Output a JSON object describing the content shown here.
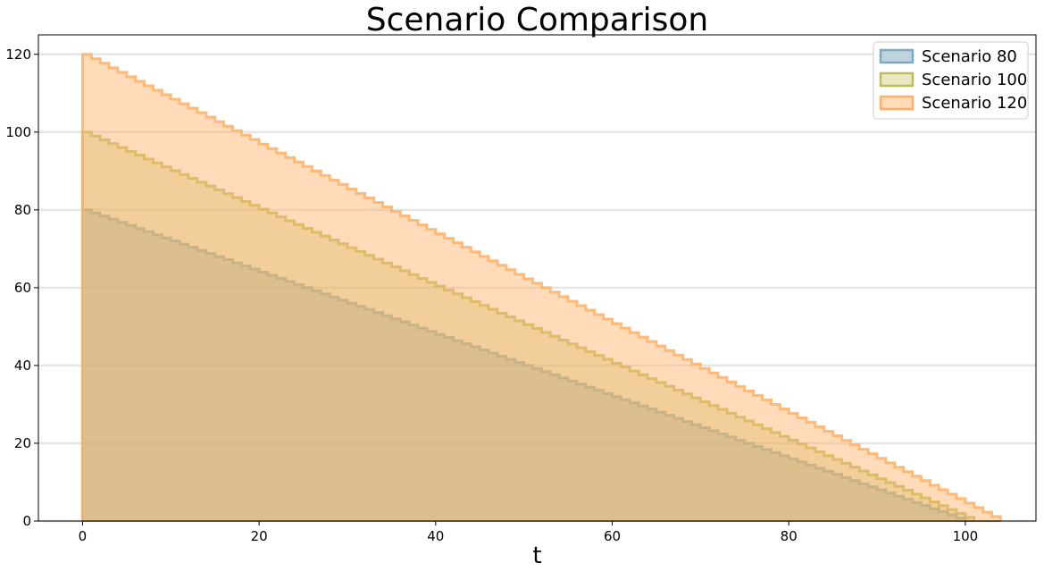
{
  "chart_data": {
    "type": "area",
    "title": "Scenario Comparison",
    "xlabel": "t",
    "ylabel": "",
    "xlim": [
      -5,
      108
    ],
    "ylim": [
      0,
      125
    ],
    "xticks": [
      0,
      20,
      40,
      60,
      80,
      100
    ],
    "yticks": [
      0,
      20,
      40,
      60,
      80,
      100,
      120
    ],
    "grid": "horizontal",
    "legend_position": "top-right",
    "step_interval": 1,
    "series": [
      {
        "name": "Scenario 80",
        "start": 80,
        "end_t": 100,
        "color": "#7fa9be",
        "fill_color": "#7fa9be",
        "fill_opacity": 0.5
      },
      {
        "name": "Scenario 100",
        "start": 100,
        "end_t": 101,
        "color": "#bcbd5a",
        "fill_color": "#bcbd5a",
        "fill_opacity": 0.35
      },
      {
        "name": "Scenario 120",
        "start": 120,
        "end_t": 104,
        "color": "#ffb066",
        "fill_color": "#ffb066",
        "fill_opacity": 0.45
      }
    ],
    "legend": {
      "labels": [
        "Scenario 80",
        "Scenario 100",
        "Scenario 120"
      ]
    }
  }
}
